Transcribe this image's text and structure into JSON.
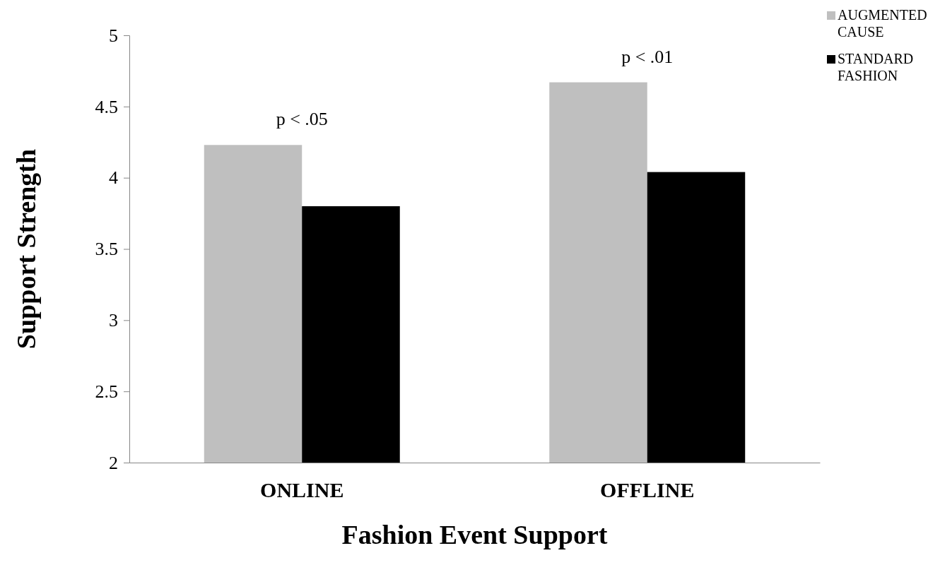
{
  "chart_data": {
    "type": "bar",
    "xlabel": "Fashion Event Support",
    "ylabel": "Support  Strength",
    "categories": [
      "ONLINE",
      "OFFLINE"
    ],
    "series": [
      {
        "name": "AUGMENTED CAUSE",
        "color": "#bfbfbf",
        "values": [
          4.23,
          4.67
        ]
      },
      {
        "name": "STANDARD FASHION",
        "color": "#000000",
        "values": [
          3.8,
          4.04
        ]
      }
    ],
    "ylim": [
      2,
      5
    ],
    "yticks": [
      2,
      2.5,
      3,
      3.5,
      4,
      4.5,
      5
    ],
    "grid": false,
    "legend": "top right",
    "annotations": [
      "p < .05",
      "p < .01"
    ]
  }
}
